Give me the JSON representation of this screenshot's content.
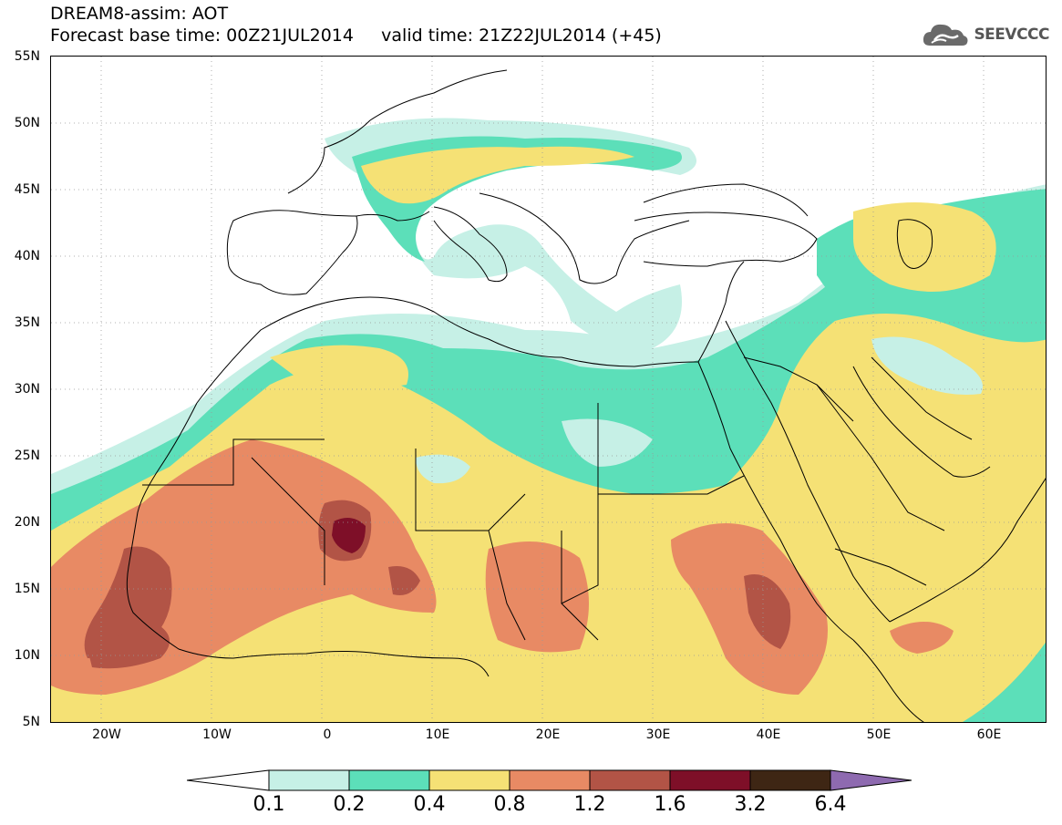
{
  "header": {
    "title_line1": "DREAM8-assim: AOT",
    "title_line2": "Forecast base time: 00Z21JUL2014     valid time: 21Z22JUL2014 (+45)"
  },
  "logo": {
    "text": "SEEVCCC",
    "icon": "cloud-icon"
  },
  "map": {
    "lat_labels": [
      "55N",
      "50N",
      "45N",
      "40N",
      "35N",
      "30N",
      "25N",
      "20N",
      "15N",
      "10N",
      "5N"
    ],
    "lon_labels": [
      "20W",
      "10W",
      "0",
      "10E",
      "20E",
      "30E",
      "40E",
      "50E",
      "60E"
    ],
    "background": "#ffffff",
    "coastline_color": "#000000"
  },
  "colorbar": {
    "labels": [
      "0.1",
      "0.2",
      "0.4",
      "0.8",
      "1.2",
      "1.6",
      "3.2",
      "6.4"
    ],
    "colors": [
      "#ffffff",
      "#c6f0e6",
      "#5cdfb9",
      "#f5e175",
      "#e88a64",
      "#b25446",
      "#7e0f28",
      "#3e2614",
      "#8e6ab0"
    ]
  }
}
